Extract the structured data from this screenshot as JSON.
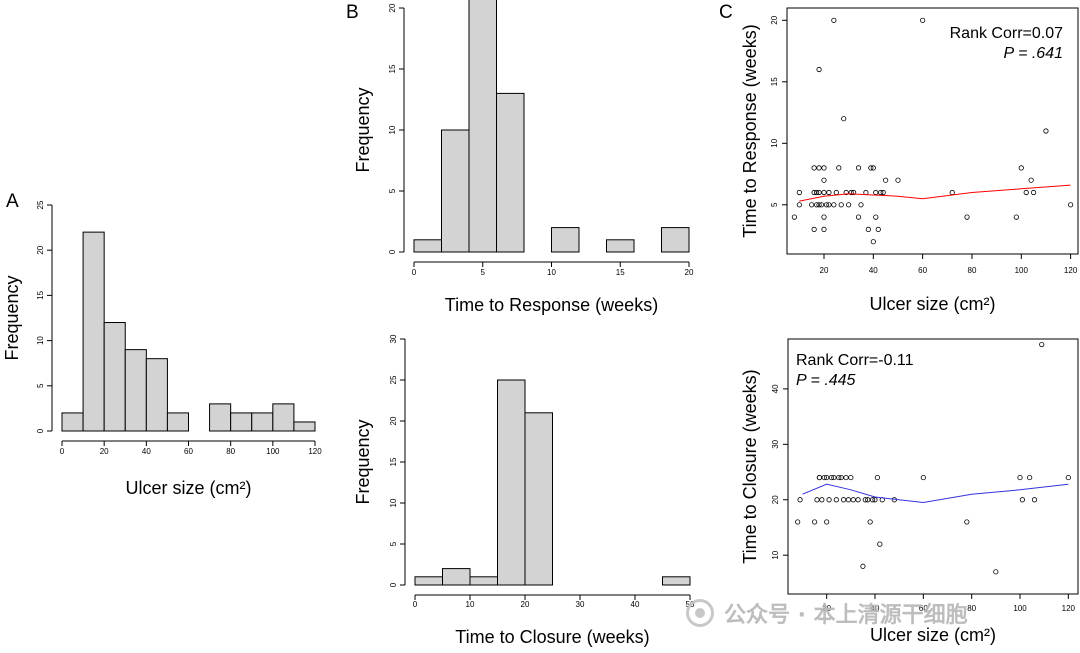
{
  "panel_labels": [
    "A",
    "B",
    "C"
  ],
  "watermark": {
    "text": "公众号 · 本上清源干细胞",
    "logo_icon": "wechat-icon"
  },
  "colors": {
    "bar_fill": "#d3d3d3",
    "axis": "#000000",
    "trend_red": "#ff0000",
    "trend_blue": "#3333dd"
  },
  "chart_data": [
    {
      "id": "A",
      "type": "bar",
      "xlabel": "Ulcer size (cm²)",
      "ylabel": "Frequency",
      "xlim": [
        0,
        120
      ],
      "ylim": [
        0,
        25
      ],
      "xticks": [
        0,
        20,
        40,
        60,
        80,
        100,
        120
      ],
      "yticks": [
        0,
        5,
        10,
        15,
        20,
        25
      ],
      "bin_edges": [
        0,
        10,
        20,
        30,
        40,
        50,
        60,
        70,
        80,
        90,
        100,
        110,
        120
      ],
      "values": [
        2,
        22,
        12,
        9,
        8,
        2,
        0,
        3,
        2,
        2,
        3,
        1
      ]
    },
    {
      "id": "B1",
      "type": "bar",
      "xlabel": "Time to Response (weeks)",
      "ylabel": "Frequency",
      "xlim": [
        0,
        20
      ],
      "ylim": [
        0,
        20
      ],
      "xticks": [
        0,
        5,
        10,
        15,
        20
      ],
      "yticks": [
        0,
        5,
        10,
        15,
        20
      ],
      "bin_edges": [
        0,
        2,
        4,
        6,
        8,
        10,
        12,
        14,
        16,
        18,
        20
      ],
      "values": [
        1,
        10,
        21,
        13,
        0,
        2,
        0,
        1,
        0,
        2
      ]
    },
    {
      "id": "B2",
      "type": "bar",
      "xlabel": "Time to Closure (weeks)",
      "ylabel": "Frequency",
      "xlim": [
        0,
        50
      ],
      "ylim": [
        0,
        30
      ],
      "xticks": [
        0,
        10,
        20,
        30,
        40,
        50
      ],
      "yticks": [
        0,
        5,
        10,
        15,
        20,
        25,
        30
      ],
      "bin_edges": [
        0,
        5,
        10,
        15,
        20,
        25,
        30,
        35,
        40,
        45,
        50
      ],
      "values": [
        1,
        2,
        1,
        25,
        21,
        0,
        0,
        0,
        0,
        1
      ]
    },
    {
      "id": "C1",
      "type": "scatter",
      "xlabel": "Ulcer size (cm²)",
      "ylabel": "Time to Response (weeks)",
      "xlim": [
        5,
        123
      ],
      "ylim": [
        1,
        21
      ],
      "xticks": [
        20,
        40,
        60,
        80,
        100,
        120
      ],
      "yticks": [
        5,
        10,
        15,
        20
      ],
      "annotation": [
        "Rank Corr=0.07",
        "P = .641"
      ],
      "points": [
        [
          8,
          4
        ],
        [
          10,
          6
        ],
        [
          10,
          5
        ],
        [
          15,
          5
        ],
        [
          16,
          8
        ],
        [
          16,
          6
        ],
        [
          16,
          3
        ],
        [
          17,
          5
        ],
        [
          17,
          6
        ],
        [
          18,
          16
        ],
        [
          18,
          8
        ],
        [
          18,
          6
        ],
        [
          18,
          5
        ],
        [
          19,
          5
        ],
        [
          20,
          8
        ],
        [
          20,
          7
        ],
        [
          20,
          6
        ],
        [
          20,
          4
        ],
        [
          20,
          3
        ],
        [
          21,
          5
        ],
        [
          22,
          5
        ],
        [
          22,
          6
        ],
        [
          24,
          20
        ],
        [
          24,
          5
        ],
        [
          25,
          6
        ],
        [
          26,
          8
        ],
        [
          27,
          5
        ],
        [
          28,
          12
        ],
        [
          29,
          6
        ],
        [
          30,
          5
        ],
        [
          31,
          6
        ],
        [
          32,
          6
        ],
        [
          34,
          4
        ],
        [
          34,
          8
        ],
        [
          35,
          5
        ],
        [
          37,
          6
        ],
        [
          38,
          3
        ],
        [
          39,
          8
        ],
        [
          40,
          8
        ],
        [
          40,
          2
        ],
        [
          41,
          4
        ],
        [
          41,
          6
        ],
        [
          42,
          3
        ],
        [
          43,
          6
        ],
        [
          44,
          6
        ],
        [
          45,
          7
        ],
        [
          50,
          7
        ],
        [
          60,
          20
        ],
        [
          72,
          6
        ],
        [
          78,
          4
        ],
        [
          98,
          4
        ],
        [
          100,
          8
        ],
        [
          102,
          6
        ],
        [
          104,
          7
        ],
        [
          105,
          6
        ],
        [
          110,
          11
        ],
        [
          120,
          5
        ]
      ],
      "trend": {
        "color": "#ff0000",
        "points": [
          [
            10,
            5.3
          ],
          [
            20,
            5.7
          ],
          [
            30,
            5.9
          ],
          [
            40,
            5.8
          ],
          [
            50,
            5.7
          ],
          [
            60,
            5.5
          ],
          [
            80,
            6.0
          ],
          [
            100,
            6.3
          ],
          [
            120,
            6.6
          ]
        ]
      }
    },
    {
      "id": "C2",
      "type": "scatter",
      "xlabel": "Ulcer size (cm²)",
      "ylabel": "Time to Closure (weeks)",
      "xlim": [
        4,
        124
      ],
      "ylim": [
        3,
        49
      ],
      "xticks": [
        20,
        40,
        60,
        80,
        100,
        120
      ],
      "yticks": [
        10,
        20,
        30,
        40
      ],
      "annotation": [
        "Rank Corr=-0.11",
        "P = .445"
      ],
      "points": [
        [
          8,
          16
        ],
        [
          9,
          20
        ],
        [
          15,
          16
        ],
        [
          16,
          20
        ],
        [
          17,
          24
        ],
        [
          17,
          24
        ],
        [
          18,
          20
        ],
        [
          19,
          24
        ],
        [
          20,
          24
        ],
        [
          20,
          16
        ],
        [
          21,
          20
        ],
        [
          22,
          24
        ],
        [
          23,
          24
        ],
        [
          24,
          20
        ],
        [
          25,
          24
        ],
        [
          26,
          24
        ],
        [
          27,
          20
        ],
        [
          28,
          24
        ],
        [
          29,
          20
        ],
        [
          30,
          24
        ],
        [
          31,
          20
        ],
        [
          33,
          20
        ],
        [
          35,
          8
        ],
        [
          36,
          20
        ],
        [
          37,
          20
        ],
        [
          38,
          16
        ],
        [
          39,
          20
        ],
        [
          40,
          20
        ],
        [
          41,
          24
        ],
        [
          42,
          12
        ],
        [
          43,
          20
        ],
        [
          48,
          20
        ],
        [
          60,
          24
        ],
        [
          78,
          16
        ],
        [
          90,
          7
        ],
        [
          100,
          24
        ],
        [
          101,
          20
        ],
        [
          104,
          24
        ],
        [
          106,
          20
        ],
        [
          109,
          48
        ],
        [
          120,
          24
        ]
      ],
      "trend": {
        "color": "#3333dd",
        "points": [
          [
            10,
            21
          ],
          [
            20,
            22.8
          ],
          [
            30,
            21.8
          ],
          [
            40,
            20.5
          ],
          [
            60,
            19.5
          ],
          [
            80,
            21
          ],
          [
            100,
            21.8
          ],
          [
            120,
            22.8
          ]
        ]
      }
    }
  ]
}
